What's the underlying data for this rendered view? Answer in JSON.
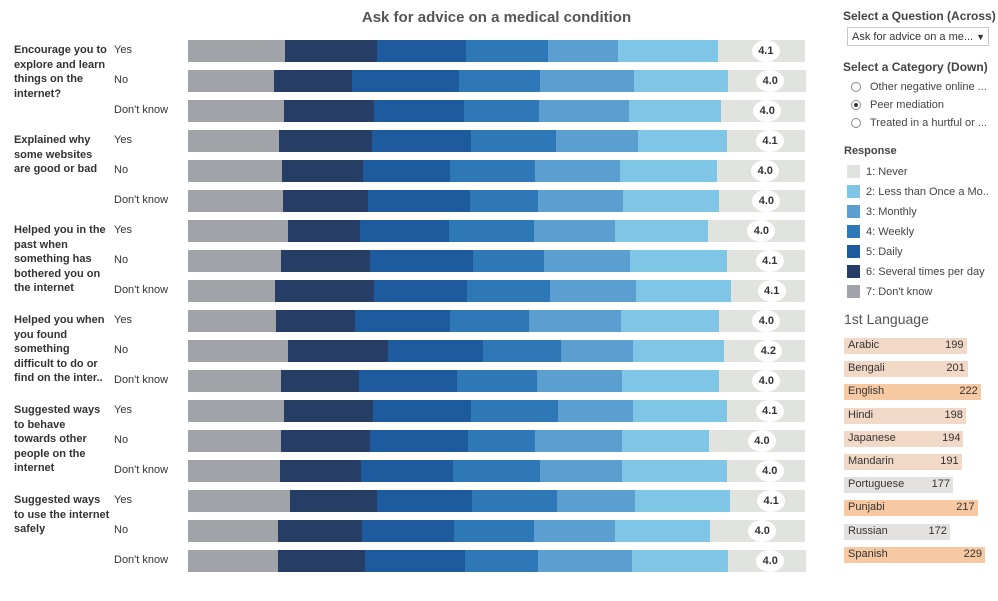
{
  "title": "Ask for advice on a medical condition",
  "colors": {
    "never": "#e1e3df",
    "less_than_once_a_month": "#7ec5e6",
    "monthly": "#5b9fd0",
    "weekly": "#2e78b8",
    "daily": "#1e5a9e",
    "several_times_per_day": "#263e66",
    "dont_know": "#a0a3a8",
    "lang_highlight": "#f7c9a2",
    "lang_light": "#f2d9c7",
    "lang_gray": "#e4e2e0"
  },
  "controls": {
    "question_title": "Select a Question (Across)",
    "question_value": "Ask for advice on a me...",
    "category_title": "Select a Category (Down)",
    "categories": [
      {
        "label": "Other negative online ...",
        "selected": false
      },
      {
        "label": "Peer mediation",
        "selected": true
      },
      {
        "label": "Treated in a hurtful or ...",
        "selected": false
      }
    ]
  },
  "legend": {
    "title": "Response",
    "items": [
      {
        "label": "1: Never",
        "key": "never"
      },
      {
        "label": "2: Less than Once a Mo..",
        "key": "less_than_once_a_month"
      },
      {
        "label": "3: Monthly",
        "key": "monthly"
      },
      {
        "label": "4: Weekly",
        "key": "weekly"
      },
      {
        "label": "5: Daily",
        "key": "daily"
      },
      {
        "label": "6: Several times per day",
        "key": "several_times_per_day"
      },
      {
        "label": "7: Don't know",
        "key": "dont_know"
      }
    ]
  },
  "languages": {
    "title": "1st Language",
    "items": [
      {
        "name": "Arabic",
        "count": 199,
        "shade": "lang_light"
      },
      {
        "name": "Bengali",
        "count": 201,
        "shade": "lang_light"
      },
      {
        "name": "English",
        "count": 222,
        "shade": "lang_highlight"
      },
      {
        "name": "Hindi",
        "count": 198,
        "shade": "lang_light"
      },
      {
        "name": "Japanese",
        "count": 194,
        "shade": "lang_light"
      },
      {
        "name": "Mandarin",
        "count": 191,
        "shade": "lang_light"
      },
      {
        "name": "Portuguese",
        "count": 177,
        "shade": "lang_gray"
      },
      {
        "name": "Punjabi",
        "count": 217,
        "shade": "lang_highlight"
      },
      {
        "name": "Russian",
        "count": 172,
        "shade": "lang_gray"
      },
      {
        "name": "Spanish",
        "count": 229,
        "shade": "lang_highlight"
      }
    ]
  },
  "chart_data": {
    "type": "bar",
    "stacked": true,
    "orientation": "horizontal",
    "title": "Ask for advice on a medical condition",
    "series_order": [
      "dont_know",
      "several_times_per_day",
      "daily",
      "weekly",
      "monthly",
      "less_than_once_a_month",
      "never"
    ],
    "groups": [
      {
        "label": "Encourage you to explore and learn things on the internet?",
        "rows": [
          {
            "response": "Yes",
            "avg": "4.1",
            "values": [
              15.8,
              14.9,
              14.4,
              13.3,
              11.3,
              16.2,
              14.1
            ]
          },
          {
            "response": "No",
            "avg": "4.0",
            "values": [
              14.0,
              12.6,
              17.4,
              13.1,
              15.2,
              15.2,
              12.5
            ]
          },
          {
            "response": "Don't know",
            "avg": "4.0",
            "values": [
              15.5,
              14.6,
              14.6,
              12.2,
              14.6,
              14.9,
              13.6
            ]
          }
        ]
      },
      {
        "label": "Explained why some websites are good or bad",
        "rows": [
          {
            "response": "Yes",
            "avg": "4.1",
            "values": [
              14.7,
              15.2,
              16.0,
              13.8,
              13.3,
              14.4,
              12.6
            ]
          },
          {
            "response": "No",
            "avg": "4.0",
            "values": [
              15.2,
              13.1,
              14.1,
              13.8,
              13.8,
              15.7,
              14.3
            ]
          },
          {
            "response": "Don't know",
            "avg": "4.0",
            "values": [
              15.4,
              13.8,
              16.4,
              11.0,
              13.8,
              15.6,
              13.9
            ]
          }
        ]
      },
      {
        "label": "Helped you in the past when something has bothered you on the internet",
        "rows": [
          {
            "response": "Yes",
            "avg": "4.0",
            "values": [
              16.2,
              11.7,
              14.4,
              13.8,
              13.1,
              15.1,
              15.7
            ]
          },
          {
            "response": "No",
            "avg": "4.1",
            "values": [
              15.1,
              14.4,
              16.7,
              11.5,
              13.9,
              15.7,
              12.7
            ]
          },
          {
            "response": "Don't know",
            "avg": "4.1",
            "values": [
              14.1,
              16.0,
              15.1,
              13.5,
              13.9,
              15.4,
              12.0
            ]
          }
        ]
      },
      {
        "label": "Helped you when you found something difficult to do or find on the inter..",
        "rows": [
          {
            "response": "Yes",
            "avg": "4.0",
            "values": [
              14.3,
              12.8,
              15.4,
              12.8,
              14.9,
              15.9,
              13.9
            ]
          },
          {
            "response": "No",
            "avg": "4.2",
            "values": [
              16.2,
              16.2,
              15.4,
              12.6,
              11.8,
              14.6,
              13.2
            ]
          },
          {
            "response": "Don't know",
            "avg": "4.0",
            "values": [
              15.1,
              12.6,
              15.9,
              13.0,
              13.8,
              15.7,
              13.9
            ]
          }
        ]
      },
      {
        "label": "Suggested ways to behave towards other people on the internet",
        "rows": [
          {
            "response": "Yes",
            "avg": "4.1",
            "values": [
              15.6,
              14.4,
              15.9,
              14.1,
              12.2,
              15.1,
              12.7
            ]
          },
          {
            "response": "No",
            "avg": "4.0",
            "values": [
              15.1,
              14.4,
              15.9,
              10.9,
              14.1,
              14.1,
              15.5
            ]
          },
          {
            "response": "Don't know",
            "avg": "4.0",
            "values": [
              14.9,
              13.1,
              14.9,
              14.1,
              13.3,
              17.0,
              12.7
            ]
          }
        ]
      },
      {
        "label": "Suggested ways to use the internet safely",
        "rows": [
          {
            "response": "Yes",
            "avg": "4.1",
            "values": [
              16.5,
              14.1,
              15.4,
              13.8,
              12.6,
              15.4,
              12.2
            ]
          },
          {
            "response": "No",
            "avg": "4.0",
            "values": [
              14.6,
              13.6,
              14.9,
              13.0,
              13.1,
              15.4,
              15.4
            ]
          },
          {
            "response": "Don't know",
            "avg": "4.0",
            "values": [
              14.6,
              14.1,
              16.2,
              11.9,
              15.1,
              15.6,
              12.5
            ]
          }
        ]
      }
    ]
  }
}
